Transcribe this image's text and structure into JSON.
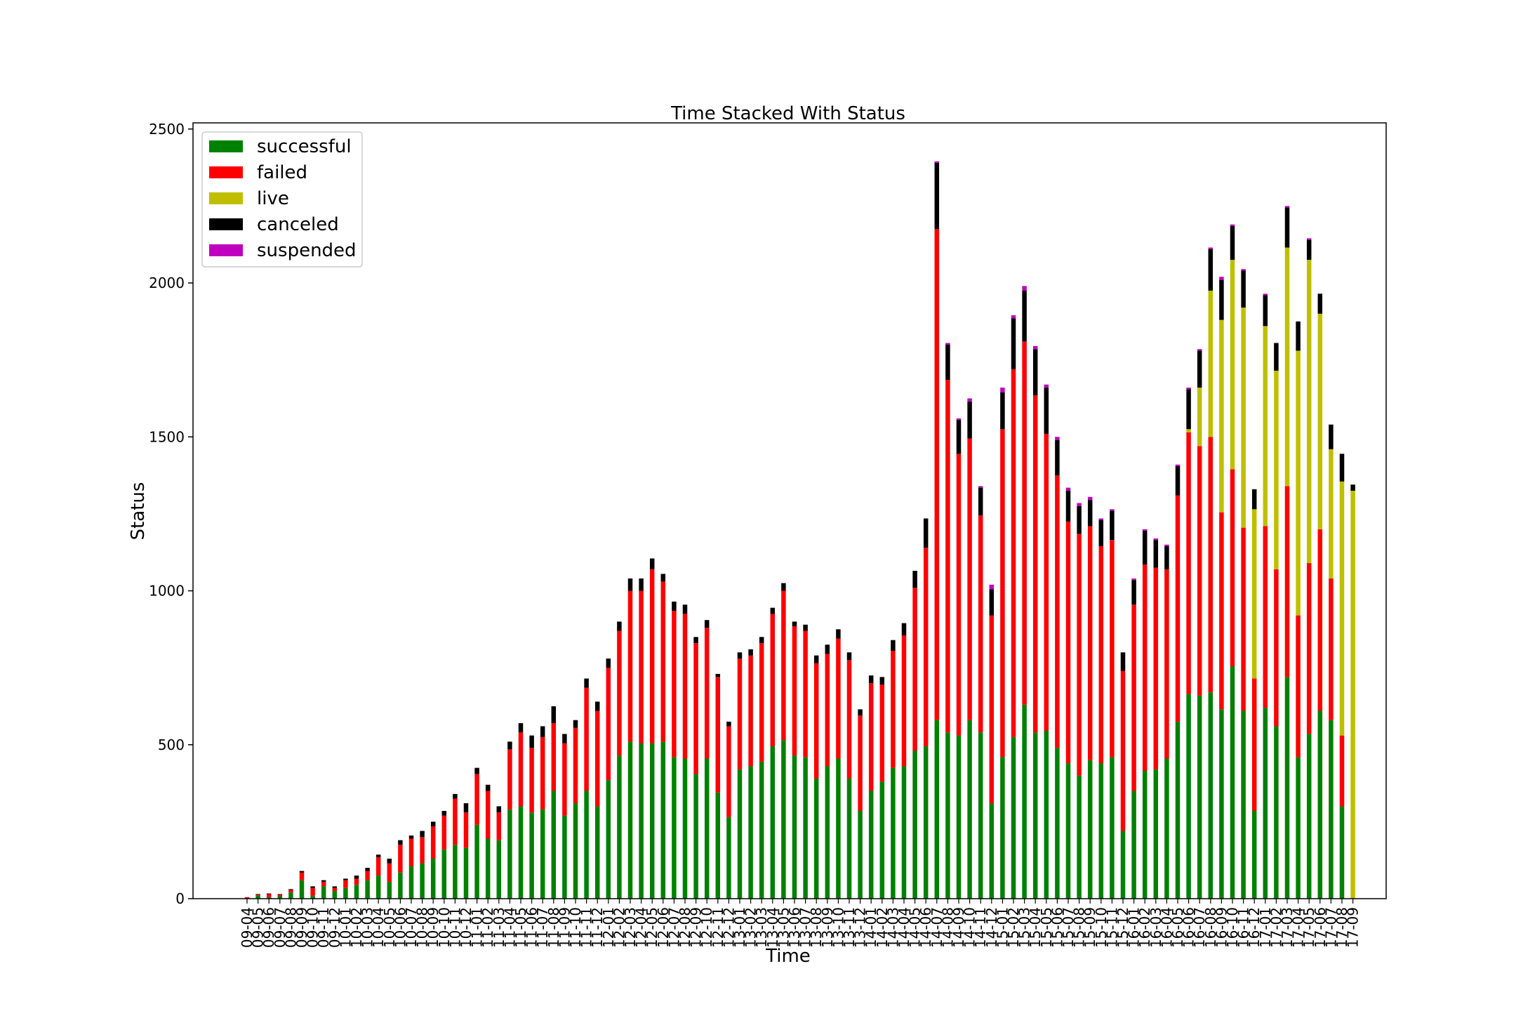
{
  "chart_data": {
    "type": "bar",
    "stacked": true,
    "title": "Time Stacked With Status",
    "xlabel": "Time",
    "ylabel": "Status",
    "ylim": [
      0,
      2520
    ],
    "yticks": [
      0,
      500,
      1000,
      1500,
      2000,
      2500
    ],
    "legend_position": "top-left",
    "grid": false,
    "categories": [
      "09-04",
      "09-05",
      "09-06",
      "09-07",
      "09-08",
      "09-09",
      "09-10",
      "09-11",
      "09-12",
      "10-01",
      "10-02",
      "10-03",
      "10-04",
      "10-05",
      "10-06",
      "10-07",
      "10-08",
      "10-09",
      "10-10",
      "10-11",
      "10-12",
      "11-01",
      "11-02",
      "11-03",
      "11-04",
      "11-05",
      "11-06",
      "11-07",
      "11-08",
      "11-09",
      "11-10",
      "11-11",
      "11-12",
      "12-01",
      "12-02",
      "12-03",
      "12-04",
      "12-05",
      "12-06",
      "12-07",
      "12-08",
      "12-09",
      "12-10",
      "12-11",
      "12-12",
      "13-01",
      "13-02",
      "13-03",
      "13-04",
      "13-05",
      "13-06",
      "13-07",
      "13-08",
      "13-09",
      "13-10",
      "13-11",
      "13-12",
      "14-01",
      "14-02",
      "14-03",
      "14-04",
      "14-05",
      "14-06",
      "14-07",
      "14-08",
      "14-09",
      "14-10",
      "14-11",
      "14-12",
      "15-01",
      "15-02",
      "15-03",
      "15-04",
      "15-05",
      "15-06",
      "15-07",
      "15-08",
      "15-09",
      "15-10",
      "15-11",
      "15-12",
      "16-01",
      "16-02",
      "16-03",
      "16-04",
      "16-05",
      "16-06",
      "16-07",
      "16-08",
      "16-09",
      "16-10",
      "16-11",
      "16-12",
      "17-01",
      "17-02",
      "17-03",
      "17-04",
      "17-05",
      "17-06",
      "17-07",
      "17-08",
      "17-09"
    ],
    "series": [
      {
        "name": "successful",
        "color": "#008000",
        "values": [
          0,
          10,
          5,
          8,
          20,
          60,
          10,
          40,
          25,
          35,
          45,
          60,
          75,
          55,
          85,
          105,
          115,
          130,
          160,
          175,
          165,
          240,
          195,
          190,
          290,
          300,
          280,
          290,
          350,
          270,
          310,
          350,
          300,
          385,
          465,
          510,
          505,
          505,
          510,
          460,
          455,
          405,
          455,
          345,
          265,
          420,
          430,
          445,
          495,
          515,
          465,
          460,
          390,
          430,
          455,
          390,
          285,
          350,
          380,
          425,
          430,
          480,
          495,
          580,
          540,
          530,
          580,
          540,
          310,
          460,
          525,
          630,
          540,
          545,
          490,
          440,
          400,
          450,
          440,
          460,
          220,
          350,
          415,
          420,
          455,
          575,
          665,
          660,
          670,
          615,
          755,
          610,
          285,
          620,
          560,
          720,
          460,
          535,
          610,
          580,
          300,
          0
        ]
      },
      {
        "name": "failed",
        "color": "#ff0000",
        "values": [
          5,
          3,
          10,
          5,
          8,
          25,
          25,
          15,
          10,
          25,
          20,
          30,
          60,
          60,
          90,
          90,
          85,
          105,
          110,
          150,
          115,
          165,
          155,
          90,
          195,
          240,
          210,
          235,
          220,
          235,
          245,
          335,
          310,
          365,
          405,
          490,
          495,
          565,
          520,
          475,
          470,
          425,
          425,
          375,
          295,
          360,
          360,
          385,
          430,
          485,
          420,
          410,
          375,
          365,
          390,
          385,
          310,
          350,
          315,
          380,
          425,
          530,
          645,
          1595,
          1145,
          915,
          915,
          705,
          610,
          1065,
          1195,
          1180,
          1095,
          965,
          885,
          785,
          785,
          760,
          705,
          705,
          520,
          605,
          670,
          655,
          615,
          735,
          850,
          810,
          830,
          640,
          640,
          595,
          430,
          590,
          510,
          620,
          460,
          555,
          590,
          460,
          230,
          0
        ]
      },
      {
        "name": "live",
        "color": "#bfbf00",
        "values": [
          0,
          0,
          0,
          0,
          0,
          0,
          0,
          0,
          0,
          0,
          0,
          0,
          0,
          0,
          0,
          0,
          0,
          0,
          0,
          0,
          0,
          0,
          0,
          0,
          0,
          0,
          0,
          0,
          0,
          0,
          0,
          0,
          0,
          0,
          0,
          0,
          0,
          0,
          0,
          0,
          0,
          0,
          0,
          0,
          0,
          0,
          0,
          0,
          0,
          0,
          0,
          0,
          0,
          0,
          0,
          0,
          0,
          0,
          0,
          0,
          0,
          0,
          0,
          0,
          0,
          0,
          0,
          0,
          0,
          0,
          0,
          0,
          0,
          0,
          0,
          0,
          0,
          0,
          0,
          0,
          0,
          0,
          0,
          0,
          0,
          0,
          10,
          190,
          475,
          625,
          680,
          715,
          550,
          650,
          645,
          775,
          860,
          985,
          700,
          420,
          825,
          1325
        ]
      },
      {
        "name": "canceled",
        "color": "#000000",
        "values": [
          0,
          2,
          2,
          2,
          3,
          5,
          5,
          5,
          5,
          5,
          10,
          10,
          8,
          15,
          15,
          10,
          20,
          15,
          15,
          15,
          30,
          20,
          20,
          20,
          25,
          30,
          40,
          35,
          55,
          30,
          25,
          30,
          30,
          30,
          30,
          40,
          40,
          35,
          25,
          30,
          30,
          20,
          25,
          10,
          15,
          20,
          20,
          20,
          20,
          25,
          15,
          20,
          25,
          30,
          30,
          25,
          20,
          25,
          25,
          35,
          40,
          55,
          95,
          215,
          115,
          110,
          120,
          90,
          85,
          120,
          165,
          165,
          150,
          150,
          115,
          100,
          90,
          85,
          85,
          95,
          60,
          80,
          110,
          90,
          75,
          95,
          130,
          120,
          135,
          130,
          110,
          120,
          65,
          100,
          90,
          130,
          95,
          65,
          65,
          80,
          90,
          20
        ]
      },
      {
        "name": "suspended",
        "color": "#bf00bf",
        "values": [
          0,
          0,
          0,
          0,
          0,
          0,
          0,
          0,
          0,
          0,
          0,
          0,
          0,
          0,
          0,
          0,
          0,
          0,
          0,
          0,
          0,
          0,
          0,
          0,
          0,
          0,
          0,
          0,
          0,
          0,
          0,
          0,
          0,
          0,
          0,
          0,
          0,
          0,
          0,
          0,
          0,
          0,
          0,
          0,
          0,
          0,
          0,
          0,
          0,
          0,
          0,
          0,
          0,
          0,
          0,
          0,
          0,
          0,
          0,
          0,
          0,
          0,
          0,
          5,
          5,
          5,
          10,
          5,
          15,
          15,
          10,
          15,
          10,
          10,
          10,
          10,
          10,
          10,
          5,
          5,
          0,
          5,
          5,
          5,
          5,
          5,
          5,
          5,
          5,
          10,
          5,
          5,
          0,
          5,
          0,
          5,
          0,
          5,
          0,
          0,
          0,
          0
        ]
      }
    ]
  }
}
